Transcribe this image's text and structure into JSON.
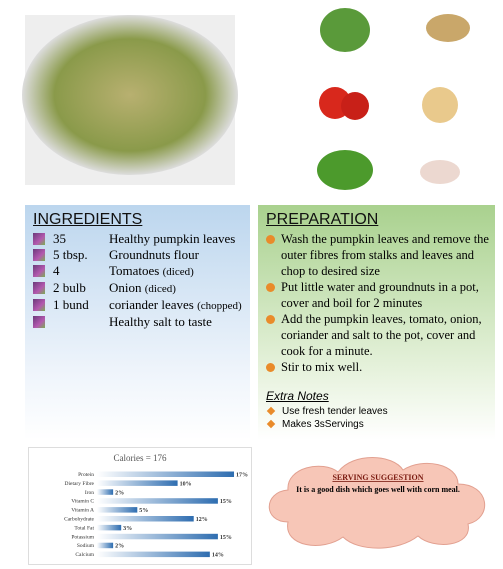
{
  "ingredients": {
    "title": "INGREDIENTS",
    "items": [
      {
        "qty": "35",
        "item": "Healthy pumpkin leaves"
      },
      {
        "qty": "5 tbsp.",
        "item": "Groundnuts flour"
      },
      {
        "qty": "4",
        "item": "Tomatoes",
        "note": "(diced)"
      },
      {
        "qty": "2 bulb",
        "item": "Onion",
        "note": "(diced)"
      },
      {
        "qty": "1 bund",
        "item": "coriander leaves",
        "note": "(chopped)"
      },
      {
        "item": "Healthy salt to taste"
      }
    ]
  },
  "preparation": {
    "title": "PREPARATION",
    "steps": [
      "Wash the pumpkin leaves and remove the outer fibres from stalks and leaves and chop to desired size",
      "Put little water and groundnuts in a pot, cover and boil for 2 minutes",
      "Add the pumpkin leaves, tomato, onion, coriander and salt to the pot, cover and cook for a minute.",
      "Stir to mix well."
    ],
    "notes_title": "Extra Notes",
    "notes": [
      "Use fresh tender leaves",
      "Makes 3sServings"
    ]
  },
  "nutrition": {
    "title": "Calories = 176",
    "categories": [
      "Protein",
      "Dietary Fibre",
      "Iron",
      "Vitamin C",
      "Vitamin A",
      "Carbohydrate",
      "Total Fat",
      "Potassium",
      "Sodium",
      "Calcium"
    ],
    "values": [
      17,
      10,
      2,
      15,
      5,
      12,
      3,
      15,
      2,
      14
    ],
    "value_labels": [
      "17%",
      "10%",
      "2%",
      "15%",
      "5%",
      "12%",
      "3%",
      "15%",
      "2%",
      "14%"
    ],
    "color": "#2e6db0"
  },
  "serving": {
    "title": "SERVING SUGGESTION",
    "text": "It is a good dish which goes well with corn meal."
  }
}
